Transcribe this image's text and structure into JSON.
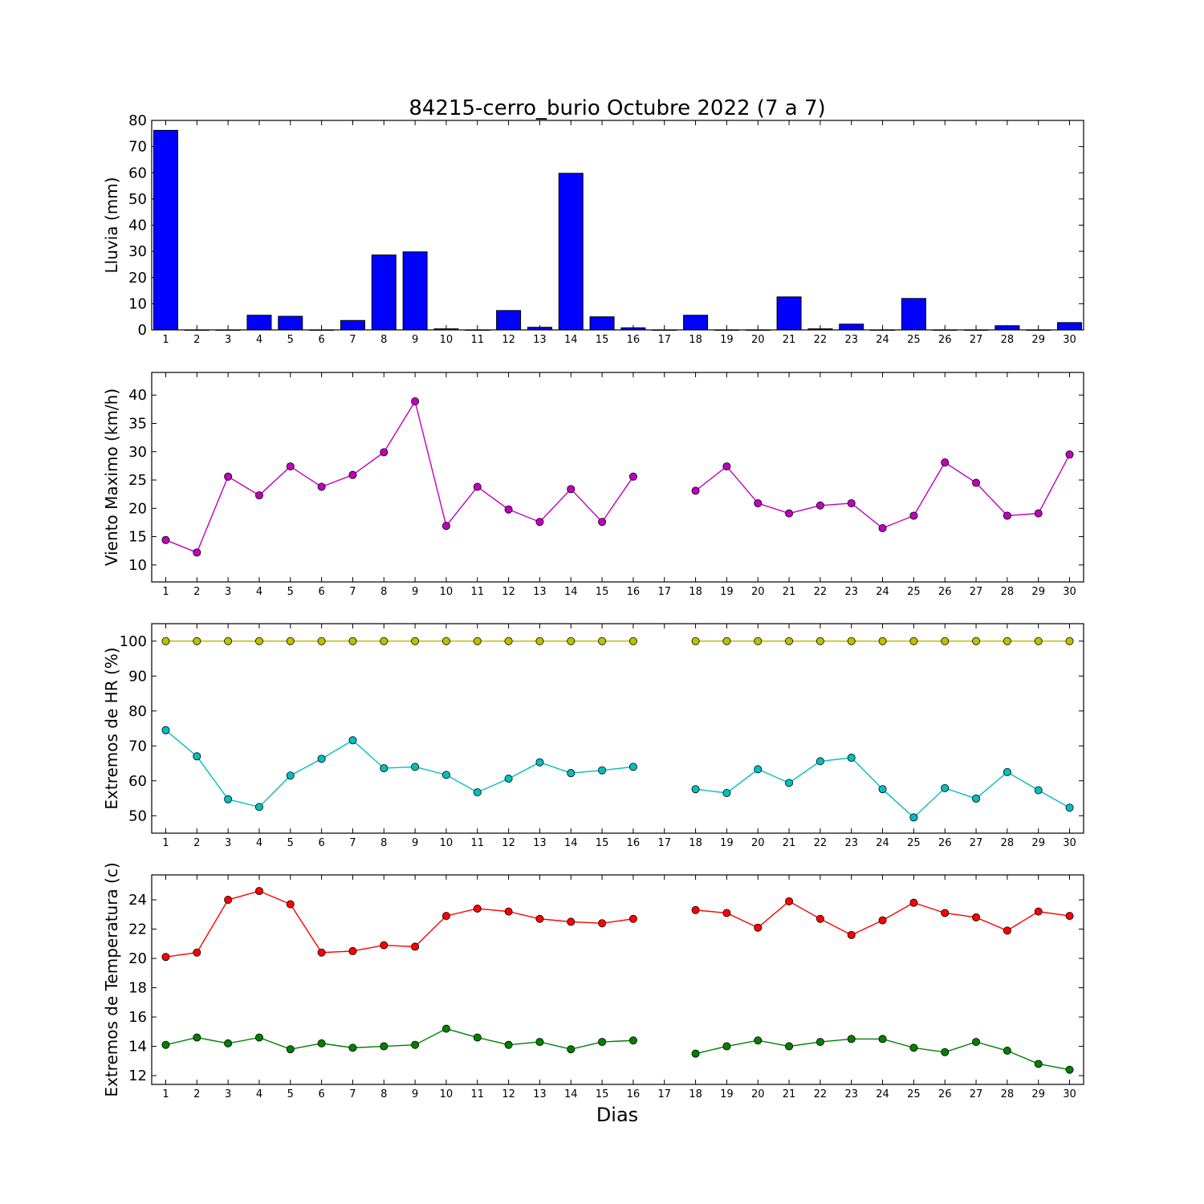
{
  "figure": {
    "title": "84215-cerro_burio Octubre 2022  (7 a 7)",
    "xlabel": "Dias"
  },
  "chart_data": [
    {
      "type": "bar",
      "ylabel": "Lluvia (mm)",
      "ylim": [
        0,
        80
      ],
      "yticks": [
        0,
        10,
        20,
        30,
        40,
        50,
        60,
        70,
        80
      ],
      "categories": [
        1,
        2,
        3,
        4,
        5,
        6,
        7,
        8,
        9,
        10,
        11,
        12,
        13,
        14,
        15,
        16,
        17,
        18,
        19,
        20,
        21,
        22,
        23,
        24,
        25,
        26,
        27,
        28,
        29,
        30
      ],
      "values": [
        76.2,
        0,
        0,
        5.6,
        5.2,
        0,
        3.6,
        28.6,
        29.8,
        0.4,
        0,
        7.4,
        1.0,
        59.8,
        5.0,
        0.8,
        0,
        5.6,
        0,
        0,
        12.6,
        0.4,
        2.2,
        0,
        12.0,
        0,
        0,
        1.6,
        0,
        2.8
      ],
      "series_color": "#0000ff",
      "grid": false
    },
    {
      "type": "line",
      "ylabel": "Viento Maximo (km/h)",
      "ylim": [
        7,
        44
      ],
      "yticks": [
        10,
        15,
        20,
        25,
        30,
        35,
        40
      ],
      "x": [
        1,
        2,
        3,
        4,
        5,
        6,
        7,
        8,
        9,
        10,
        11,
        12,
        13,
        14,
        15,
        16,
        17,
        18,
        19,
        20,
        21,
        22,
        23,
        24,
        25,
        26,
        27,
        28,
        29,
        30
      ],
      "series": [
        {
          "color": "#bf00bf",
          "values": [
            14.4,
            12.2,
            25.6,
            22.3,
            27.4,
            23.8,
            25.9,
            29.9,
            38.9,
            16.9,
            23.8,
            19.8,
            17.6,
            23.4,
            17.6,
            25.6,
            null,
            23.1,
            27.4,
            20.9,
            19.1,
            20.5,
            20.9,
            16.5,
            18.7,
            28.1,
            24.5,
            18.7,
            19.1,
            29.5
          ]
        }
      ],
      "grid": false
    },
    {
      "type": "line",
      "ylabel": "Extremos de HR (%)",
      "ylim": [
        45,
        105
      ],
      "yticks": [
        50,
        60,
        70,
        80,
        90,
        100
      ],
      "x": [
        1,
        2,
        3,
        4,
        5,
        6,
        7,
        8,
        9,
        10,
        11,
        12,
        13,
        14,
        15,
        16,
        17,
        18,
        19,
        20,
        21,
        22,
        23,
        24,
        25,
        26,
        27,
        28,
        29,
        30
      ],
      "series": [
        {
          "color": "#bfbf00",
          "values": [
            100,
            100,
            100,
            100,
            100,
            100,
            100,
            100,
            100,
            100,
            100,
            100,
            100,
            100,
            100,
            100,
            null,
            100,
            100,
            100,
            100,
            100,
            100,
            100,
            100,
            100,
            100,
            100,
            100,
            100
          ]
        },
        {
          "color": "#00bfbf",
          "values": [
            74.5,
            67.0,
            54.7,
            52.5,
            61.5,
            66.3,
            71.6,
            63.6,
            64.0,
            61.7,
            56.7,
            60.6,
            65.3,
            62.2,
            63.0,
            64.0,
            null,
            57.6,
            56.5,
            63.3,
            59.4,
            65.6,
            66.6,
            57.6,
            49.5,
            57.9,
            54.9,
            62.5,
            57.3,
            52.3
          ]
        }
      ],
      "grid": false
    },
    {
      "type": "line",
      "ylabel": "Extremos de Temperatura (c)",
      "ylim": [
        11.4,
        25.7
      ],
      "yticks": [
        12,
        14,
        16,
        18,
        20,
        22,
        24
      ],
      "x": [
        1,
        2,
        3,
        4,
        5,
        6,
        7,
        8,
        9,
        10,
        11,
        12,
        13,
        14,
        15,
        16,
        17,
        18,
        19,
        20,
        21,
        22,
        23,
        24,
        25,
        26,
        27,
        28,
        29,
        30
      ],
      "series": [
        {
          "color": "#ff0000",
          "values": [
            20.1,
            20.4,
            24.0,
            24.6,
            23.7,
            20.4,
            20.5,
            20.9,
            20.8,
            22.9,
            23.4,
            23.2,
            22.7,
            22.5,
            22.4,
            22.7,
            null,
            23.3,
            23.1,
            22.1,
            23.9,
            22.7,
            21.6,
            22.6,
            23.8,
            23.1,
            22.8,
            21.9,
            23.2,
            22.9
          ]
        },
        {
          "color": "#007f00",
          "values": [
            14.1,
            14.6,
            14.2,
            14.6,
            13.8,
            14.2,
            13.9,
            14.0,
            14.1,
            15.2,
            14.6,
            14.1,
            14.3,
            13.8,
            14.3,
            14.4,
            null,
            13.5,
            14.0,
            14.4,
            14.0,
            14.3,
            14.5,
            14.5,
            13.9,
            13.6,
            14.3,
            13.7,
            12.8,
            12.4
          ]
        }
      ],
      "grid": false
    }
  ]
}
